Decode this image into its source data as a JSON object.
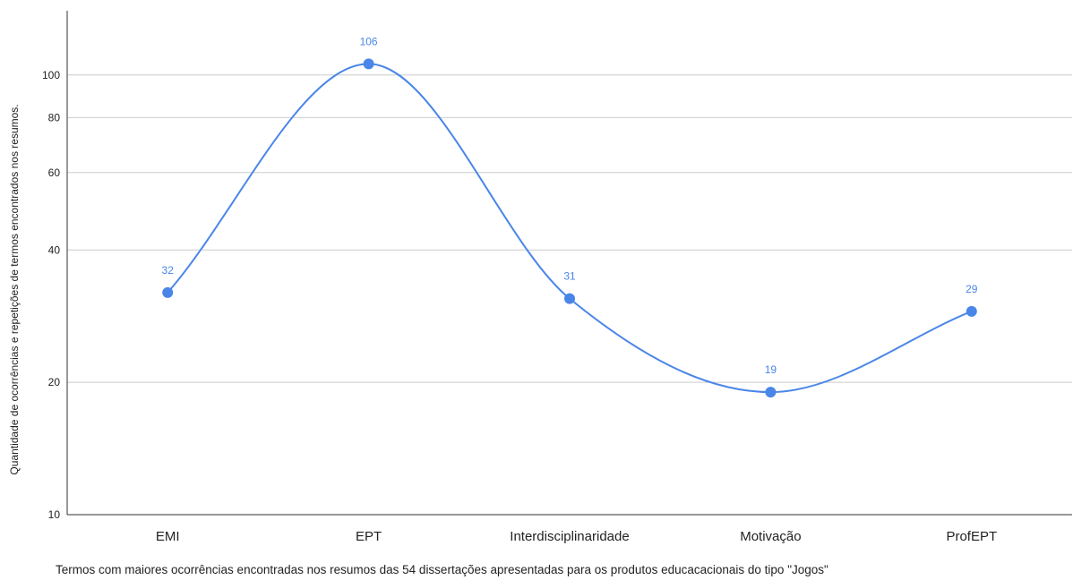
{
  "chart_data": {
    "type": "line",
    "curve": "smooth",
    "y_scale": "log",
    "categories": [
      "EMI",
      "EPT",
      "Interdisciplinaridade",
      "Motivação",
      "ProfEPT"
    ],
    "series": [
      {
        "values": [
          32,
          106,
          31,
          19,
          29
        ],
        "color": "#4a86e8"
      }
    ],
    "data_labels": [
      "32",
      "106",
      "31",
      "19",
      "29"
    ],
    "ylabel": "Quantidade de ocorrências e repetições de termos encontrados nos resumos.",
    "xlabel": "Termos com maiores ocorrências encontradas nos resumos das 54 dissertações apresentadas para os produtos educacacionais do tipo \"Jogos\"",
    "ylim": [
      10,
      140
    ],
    "y_ticks": [
      10,
      20,
      40,
      60,
      80,
      100
    ],
    "grid": true,
    "legend": "none"
  }
}
